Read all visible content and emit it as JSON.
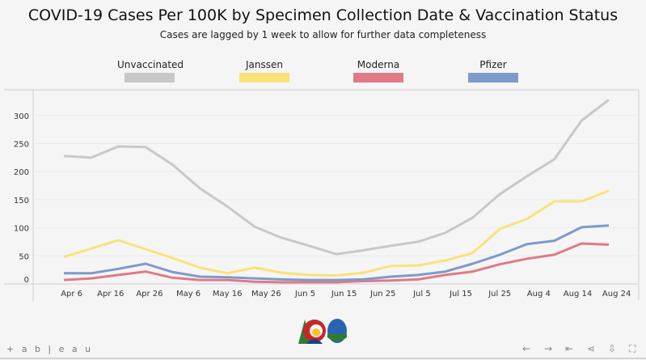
{
  "title": "COVID-19 Cases Per 100K by Specimen Collection Date & Vaccination Status",
  "subtitle": "Cases are lagged by 1 week to allow for further data completeness",
  "footer": {
    "brand": "+ a b | e a u"
  },
  "chart_data": {
    "type": "line",
    "title": "COVID-19 Cases Per 100K by Specimen Collection Date & Vaccination Status",
    "xlabel": "",
    "ylabel": "",
    "ylim": [
      0,
      330
    ],
    "yticks": [
      0,
      50,
      100,
      150,
      200,
      250,
      300
    ],
    "xtick_labels": [
      "Apr 6",
      "Apr 16",
      "Apr 26",
      "May 6",
      "May 16",
      "May 26",
      "Jun 5",
      "Jun 15",
      "Jun 25",
      "Jul 5",
      "Jul 15",
      "Jul 25",
      "Aug 4",
      "Aug 14",
      "Aug 24"
    ],
    "x": [
      "Apr 4",
      "Apr 11",
      "Apr 18",
      "Apr 25",
      "May 2",
      "May 9",
      "May 16",
      "May 23",
      "May 30",
      "Jun 6",
      "Jun 13",
      "Jun 20",
      "Jun 27",
      "Jul 4",
      "Jul 11",
      "Jul 18",
      "Jul 25",
      "Aug 1",
      "Aug 8",
      "Aug 15",
      "Aug 22"
    ],
    "legend_position": "top",
    "grid": true,
    "series": [
      {
        "name": "Unvaccinated",
        "color": "#c8c8c8",
        "values": [
          228,
          225,
          245,
          244,
          212,
          170,
          138,
          102,
          82,
          68,
          53,
          60,
          68,
          75,
          91,
          118,
          160,
          192,
          222,
          291,
          328
        ]
      },
      {
        "name": "Janssen",
        "color": "#fae27a",
        "values": [
          48,
          63,
          78,
          62,
          46,
          29,
          19,
          29,
          20,
          16,
          15,
          20,
          32,
          33,
          42,
          55,
          98,
          116,
          147,
          147,
          166
        ]
      },
      {
        "name": "Moderna",
        "color": "#e07a86",
        "values": [
          7,
          10,
          16,
          22,
          11,
          7,
          7,
          4,
          3,
          3,
          3,
          5,
          6,
          8,
          16,
          22,
          35,
          45,
          52,
          72,
          70
        ]
      },
      {
        "name": "Pfizer",
        "color": "#7d9acb",
        "values": [
          19,
          19,
          27,
          36,
          21,
          13,
          12,
          10,
          8,
          7,
          7,
          8,
          13,
          16,
          22,
          36,
          52,
          71,
          77,
          101,
          104
        ]
      }
    ]
  }
}
